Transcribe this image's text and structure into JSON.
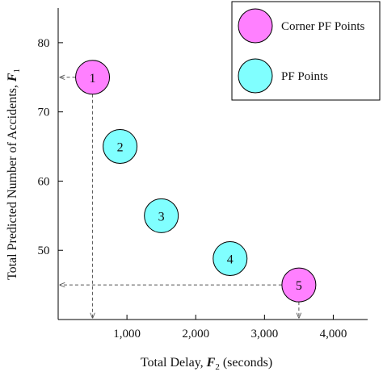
{
  "chart_data": {
    "type": "scatter",
    "xlabel": "Total Delay, F2 (seconds)",
    "xlabel_parts": {
      "prefix": "Total Delay, ",
      "var": "F",
      "sub": "2",
      "suffix": " (seconds)"
    },
    "ylabel": "Total Predicted Number of Accidents, F1",
    "ylabel_parts": {
      "prefix": "Total Predicted Number of Accidents, ",
      "var": "F",
      "sub": "1"
    },
    "xlim": [
      0,
      4500
    ],
    "ylim": [
      40,
      85
    ],
    "x_ticks": [
      1000,
      2000,
      3000,
      4000
    ],
    "x_tick_labels": [
      "1,000",
      "2,000",
      "3,000",
      "4,000"
    ],
    "y_ticks": [
      50,
      60,
      70,
      80
    ],
    "y_tick_labels": [
      "50",
      "60",
      "70",
      "80"
    ],
    "grid": false,
    "legend_position": "top-right",
    "series": [
      {
        "name": "Corner PF Points",
        "color": "#ff80ff",
        "points": [
          {
            "label": "1",
            "x": 500,
            "y": 75
          },
          {
            "label": "5",
            "x": 3500,
            "y": 45
          }
        ]
      },
      {
        "name": "PF Points",
        "color": "#80ffff",
        "points": [
          {
            "label": "2",
            "x": 900,
            "y": 65
          },
          {
            "label": "3",
            "x": 1500,
            "y": 55
          },
          {
            "label": "4",
            "x": 2500,
            "y": 48.8
          }
        ]
      }
    ],
    "reference_lines": [
      {
        "point_label": "1"
      },
      {
        "point_label": "5"
      }
    ]
  }
}
